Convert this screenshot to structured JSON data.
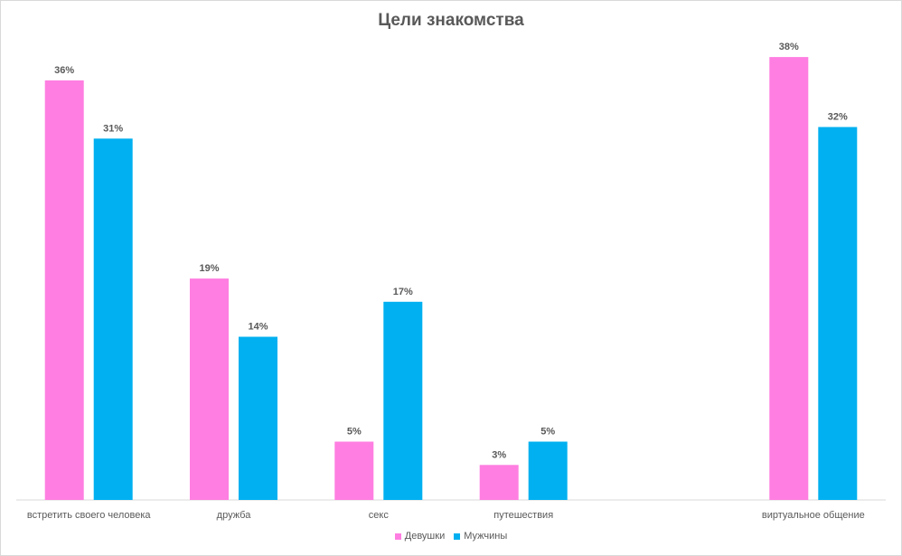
{
  "chart_data": {
    "type": "bar",
    "title": "Цели знакомства",
    "categories": [
      "встретить своего человека",
      "дружба",
      "секс",
      "путешествия",
      "",
      "виртуальное общение"
    ],
    "series": [
      {
        "name": "Девушки",
        "color": "#ff7ee1",
        "values": [
          36,
          19,
          5,
          3,
          null,
          38
        ],
        "labels": [
          "36%",
          "19%",
          "5%",
          "3%",
          "",
          "38%"
        ]
      },
      {
        "name": "Мужчины",
        "color": "#00b0f0",
        "values": [
          31,
          14,
          17,
          5,
          null,
          32
        ],
        "labels": [
          "31%",
          "14%",
          "17%",
          "5%",
          "",
          "32%"
        ]
      }
    ],
    "ylim": [
      0,
      40
    ],
    "grid": false,
    "legend_position": "bottom"
  }
}
